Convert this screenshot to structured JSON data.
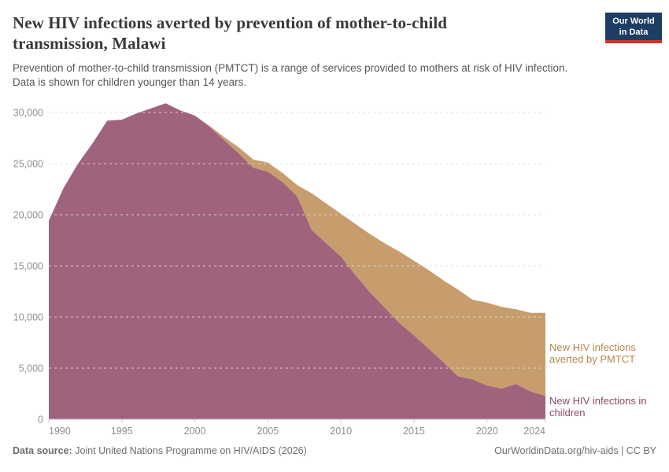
{
  "header": {
    "title": "New HIV infections averted by prevention of mother-to-child transmission, Malawi",
    "subtitle_lines": [
      "Prevention of mother-to-child transmission (PMTCT) is a range of services provided to mothers at risk of HIV infection.",
      "Data is shown for children younger than 14 years."
    ],
    "logo": {
      "line1": "Our World",
      "line2": "in Data",
      "bg_color": "#1d3d63",
      "bar_color": "#d1352c"
    }
  },
  "chart_data": {
    "type": "area",
    "stacked": true,
    "title": "New HIV infections averted by prevention of mother-to-child transmission, Malawi",
    "x": [
      1990,
      1991,
      1992,
      1993,
      1994,
      1995,
      1996,
      1997,
      1998,
      1999,
      2000,
      2001,
      2002,
      2003,
      2004,
      2005,
      2006,
      2007,
      2008,
      2009,
      2010,
      2011,
      2012,
      2013,
      2014,
      2015,
      2016,
      2017,
      2018,
      2019,
      2020,
      2021,
      2022,
      2023,
      2024
    ],
    "series": [
      {
        "name": "New HIV infections in children",
        "color": "#a0637e",
        "label_color": "#8d4a66",
        "values": [
          19400,
          22600,
          25000,
          27000,
          29200,
          29300,
          29900,
          30400,
          30900,
          30200,
          29700,
          28600,
          27300,
          26000,
          24600,
          24200,
          23200,
          21800,
          18500,
          17200,
          15900,
          14100,
          12400,
          10900,
          9400,
          8200,
          6900,
          5600,
          4200,
          3900,
          3300,
          3000,
          3450,
          2700,
          2300
        ]
      },
      {
        "name": "New HIV infections averted by PMTCT",
        "color": "#c79d6e",
        "label_color": "#b5854d",
        "values": [
          0,
          0,
          0,
          0,
          0,
          0,
          0,
          0,
          0,
          0,
          0,
          100,
          300,
          600,
          800,
          900,
          900,
          1100,
          3600,
          3900,
          4200,
          5000,
          5700,
          6300,
          7000,
          7300,
          7700,
          8000,
          8500,
          7800,
          8100,
          8000,
          7300,
          7700,
          8100
        ]
      }
    ],
    "ylim": [
      0,
      30000
    ],
    "y_ticks": [
      0,
      5000,
      10000,
      15000,
      20000,
      25000,
      30000
    ],
    "x_ticks": [
      1990,
      1995,
      2000,
      2005,
      2010,
      2015,
      2020,
      2024
    ],
    "grid": "dashed",
    "legend_position": "right-inline"
  },
  "legend": {
    "items": [
      {
        "label": "New HIV infections averted by PMTCT",
        "color": "#b5854d"
      },
      {
        "label": "New HIV infections in children",
        "color": "#8d4a66"
      }
    ]
  },
  "footer": {
    "source_label": "Data source:",
    "source_text": " Joint United Nations Programme on HIV/AIDS (2026)",
    "credit": "OurWorldinData.org/hiv-aids | CC BY"
  }
}
